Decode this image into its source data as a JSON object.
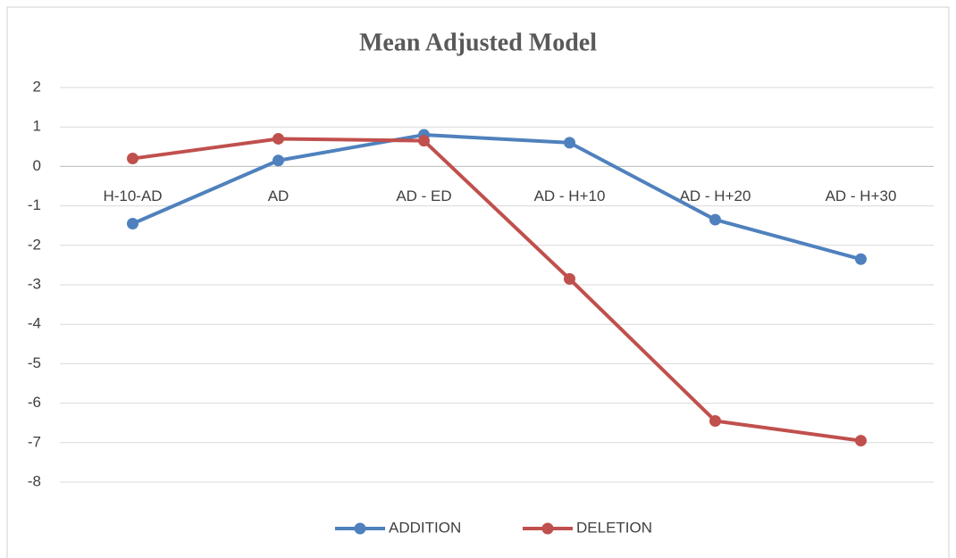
{
  "chart_data": {
    "type": "line",
    "title": "Mean Adjusted Model",
    "categories": [
      "H-10-AD",
      "AD",
      "AD  - ED",
      "AD - H+10",
      "AD - H+20",
      "AD - H+30"
    ],
    "series": [
      {
        "name": "ADDITION",
        "color": "#4f81bd",
        "values": [
          -1.45,
          0.15,
          0.8,
          0.6,
          -1.35,
          -2.35
        ]
      },
      {
        "name": "DELETION",
        "color": "#c0504d",
        "values": [
          0.2,
          0.7,
          0.65,
          -2.85,
          -6.45,
          -6.95
        ]
      }
    ],
    "ylim": [
      -8,
      2
    ],
    "yticks": [
      -8,
      -7,
      -6,
      -5,
      -4,
      -3,
      -2,
      -1,
      0,
      1,
      2
    ],
    "grid": true,
    "legend": "bottom"
  }
}
